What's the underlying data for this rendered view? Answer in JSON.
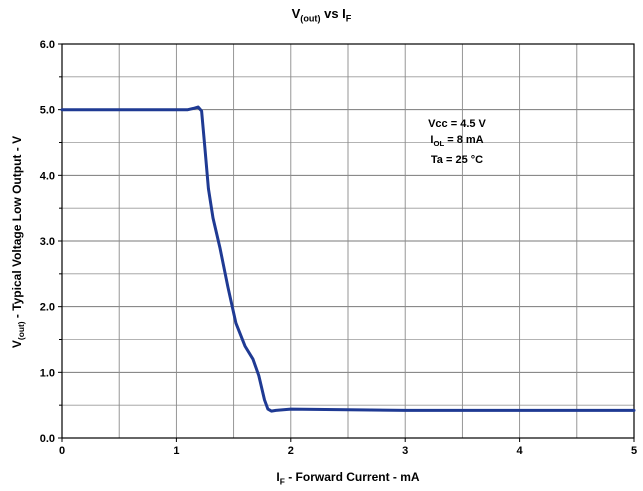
{
  "chart_data": {
    "type": "line",
    "title": {
      "main": "V",
      "main_sub": "(out)",
      "mid": " vs I",
      "mid_sub": "F"
    },
    "xlabel": {
      "main": "I",
      "sub": "F",
      "rest": " - Forward Current - mA"
    },
    "ylabel": {
      "main": "V",
      "sub": "(out)",
      "rest": " - Typical Voltage Low Output - V"
    },
    "xlim": [
      0,
      5
    ],
    "ylim": [
      0,
      6
    ],
    "x_ticks": [
      "0",
      "1",
      "2",
      "3",
      "4",
      "5"
    ],
    "y_ticks": [
      "0.0",
      "1.0",
      "2.0",
      "3.0",
      "4.0",
      "5.0",
      "6.0"
    ],
    "grid": true,
    "annotations": [
      {
        "text": "Vcc = 4.5 V"
      },
      {
        "main": "I",
        "sub": "OL",
        "rest": " = 8 mA"
      },
      {
        "text": "Ta = 25 °C"
      }
    ],
    "series": [
      {
        "color": "#1f3a93",
        "points": [
          [
            0.0,
            5.0
          ],
          [
            0.5,
            5.0
          ],
          [
            1.0,
            5.0
          ],
          [
            1.1,
            5.0
          ],
          [
            1.15,
            5.02
          ],
          [
            1.19,
            5.04
          ],
          [
            1.22,
            4.98
          ],
          [
            1.25,
            4.4
          ],
          [
            1.28,
            3.8
          ],
          [
            1.32,
            3.35
          ],
          [
            1.38,
            2.9
          ],
          [
            1.45,
            2.3
          ],
          [
            1.52,
            1.75
          ],
          [
            1.6,
            1.4
          ],
          [
            1.67,
            1.2
          ],
          [
            1.72,
            0.95
          ],
          [
            1.77,
            0.58
          ],
          [
            1.8,
            0.44
          ],
          [
            1.83,
            0.41
          ],
          [
            1.87,
            0.42
          ],
          [
            2.0,
            0.44
          ],
          [
            2.5,
            0.43
          ],
          [
            3.0,
            0.42
          ],
          [
            4.0,
            0.42
          ],
          [
            5.0,
            0.42
          ]
        ]
      }
    ]
  }
}
